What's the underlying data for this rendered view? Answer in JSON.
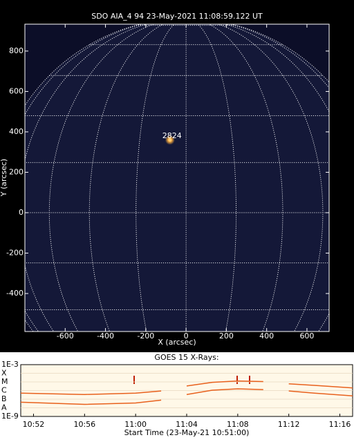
{
  "chart_data": [
    {
      "type": "image",
      "title": "SDO AIA_4 94 23-May-2021 11:08:59.122 UT",
      "xlabel": "X (arcsec)",
      "ylabel": "Y (arcsec)",
      "xlim": [
        -800,
        710
      ],
      "ylim": [
        -588,
        933
      ],
      "xticks": [
        -600,
        -400,
        -200,
        0,
        200,
        400,
        600
      ],
      "yticks": [
        -400,
        -200,
        0,
        200,
        400,
        600,
        800
      ],
      "annotations": [
        {
          "text": "2824",
          "x": -70,
          "y": 380
        }
      ],
      "sources": [
        {
          "x": -80,
          "y": 360,
          "color": "#ffd27a"
        }
      ]
    },
    {
      "type": "line",
      "title": "GOES 15 X-Rays:",
      "xlabel": "Start Time (23-May-21 10:51:00)",
      "log": true,
      "grid": true,
      "xlim": [
        "10:51",
        "11:17"
      ],
      "xticks": [
        "10:52",
        "10:56",
        "11:00",
        "11:04",
        "11:08",
        "11:12",
        "11:16"
      ],
      "ylim": [
        1e-09,
        0.001
      ],
      "yticks": [
        {
          "value": 0.001,
          "label": "1E-3"
        },
        {
          "value": 0.0001,
          "label": "X"
        },
        {
          "value": 1e-05,
          "label": "M"
        },
        {
          "value": 1e-06,
          "label": "C"
        },
        {
          "value": 1e-07,
          "label": "B"
        },
        {
          "value": 1e-08,
          "label": "A"
        },
        {
          "value": 1e-09,
          "label": "1E-9"
        }
      ],
      "x": [
        "10:51",
        "10:56",
        "11:00",
        "11:02",
        "11:03",
        "11:04",
        "11:06",
        "11:08",
        "11:10",
        "11:11",
        "11:12",
        "11:14",
        "11:17"
      ],
      "series": [
        {
          "color": "#e8601c",
          "values": [
            5e-07,
            3.5e-07,
            5e-07,
            9e-07,
            null,
            3.4e-06,
            9e-06,
            1.3e-05,
            1.1e-05,
            null,
            6e-06,
            4e-06,
            2e-06
          ]
        },
        {
          "color": "#e8601c",
          "values": [
            4.5e-08,
            2.5e-08,
            3.6e-08,
            7.7e-08,
            null,
            3.5e-07,
            1.1e-06,
            1.6e-06,
            1.3e-06,
            null,
            9e-07,
            5e-07,
            2.4e-07
          ]
        }
      ]
    }
  ]
}
